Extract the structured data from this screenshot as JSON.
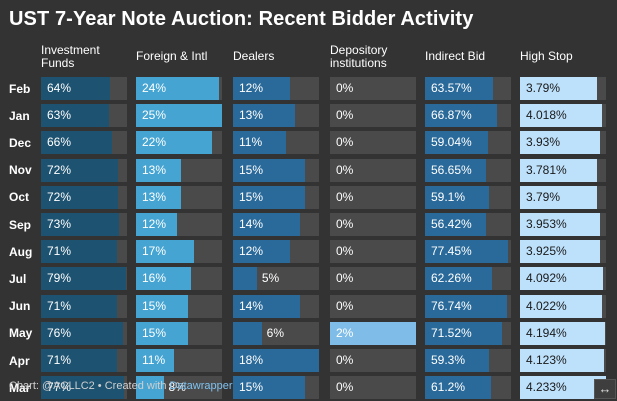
{
  "title": "UST 7-Year Note Auction: Recent Bidder Activity",
  "footer": {
    "prefix": "Chart: @ACLLC2 • Created with",
    "link": "Datawrapper"
  },
  "colors": {
    "background": "#333333",
    "empty": "#4a4a4a",
    "investment": "#1d5270",
    "foreign": "#45a4d2",
    "dealers": "#2a6a9a",
    "depository": "#7fbde8",
    "indirect": "#2a6a9a",
    "highstop": "#bde0fb"
  },
  "chart_data": {
    "type": "table",
    "title": "UST 7-Year Note Auction: Recent Bidder Activity",
    "rows": [
      "Feb",
      "Jan",
      "Dec",
      "Nov",
      "Oct",
      "Sep",
      "Aug",
      "Jul",
      "Jun",
      "May",
      "Apr",
      "Mar"
    ],
    "columns": [
      {
        "key": "investment",
        "header_lines": [
          "Investment",
          "Funds"
        ],
        "max": 80,
        "labels": [
          "64%",
          "63%",
          "66%",
          "72%",
          "72%",
          "73%",
          "71%",
          "79%",
          "71%",
          "76%",
          "71%",
          "77%"
        ],
        "values": [
          64,
          63,
          66,
          72,
          72,
          73,
          71,
          79,
          71,
          76,
          71,
          77
        ]
      },
      {
        "key": "foreign",
        "header_lines": [
          "Foreign & Intl"
        ],
        "max": 25,
        "labels": [
          "24%",
          "25%",
          "22%",
          "13%",
          "13%",
          "12%",
          "17%",
          "16%",
          "15%",
          "15%",
          "11%",
          "8%"
        ],
        "values": [
          24,
          25,
          22,
          13,
          13,
          12,
          17,
          16,
          15,
          15,
          11,
          8
        ]
      },
      {
        "key": "dealers",
        "header_lines": [
          "Dealers"
        ],
        "max": 18,
        "labels": [
          "12%",
          "13%",
          "11%",
          "15%",
          "15%",
          "14%",
          "12%",
          "5%",
          "14%",
          "6%",
          "18%",
          "15%"
        ],
        "values": [
          12,
          13,
          11,
          15,
          15,
          14,
          12,
          5,
          14,
          6,
          18,
          15
        ]
      },
      {
        "key": "depository",
        "header_lines": [
          "Depository",
          "institutions"
        ],
        "max": 2,
        "labels": [
          "0%",
          "0%",
          "0%",
          "0%",
          "0%",
          "0%",
          "0%",
          "0%",
          "0%",
          "2%",
          "0%",
          "0%"
        ],
        "values": [
          0,
          0,
          0,
          0,
          0,
          0,
          0,
          0,
          0,
          2,
          0,
          0
        ]
      },
      {
        "key": "indirect",
        "header_lines": [
          "Indirect Bid"
        ],
        "max": 80,
        "labels": [
          "63.57%",
          "66.87%",
          "59.04%",
          "56.65%",
          "59.1%",
          "56.42%",
          "77.45%",
          "62.26%",
          "76.74%",
          "71.52%",
          "59.3%",
          "61.2%"
        ],
        "values": [
          63.57,
          66.87,
          59.04,
          56.65,
          59.1,
          56.42,
          77.45,
          62.26,
          76.74,
          71.52,
          59.3,
          61.2
        ]
      },
      {
        "key": "highstop",
        "header_lines": [
          "High Stop"
        ],
        "max": 4.233,
        "labels": [
          "3.79%",
          "4.018%",
          "3.93%",
          "3.781%",
          "3.79%",
          "3.953%",
          "3.925%",
          "4.092%",
          "4.022%",
          "4.194%",
          "4.123%",
          "4.233%"
        ],
        "values": [
          3.79,
          4.018,
          3.93,
          3.781,
          3.79,
          3.953,
          3.925,
          4.092,
          4.022,
          4.194,
          4.123,
          4.233
        ]
      }
    ]
  }
}
